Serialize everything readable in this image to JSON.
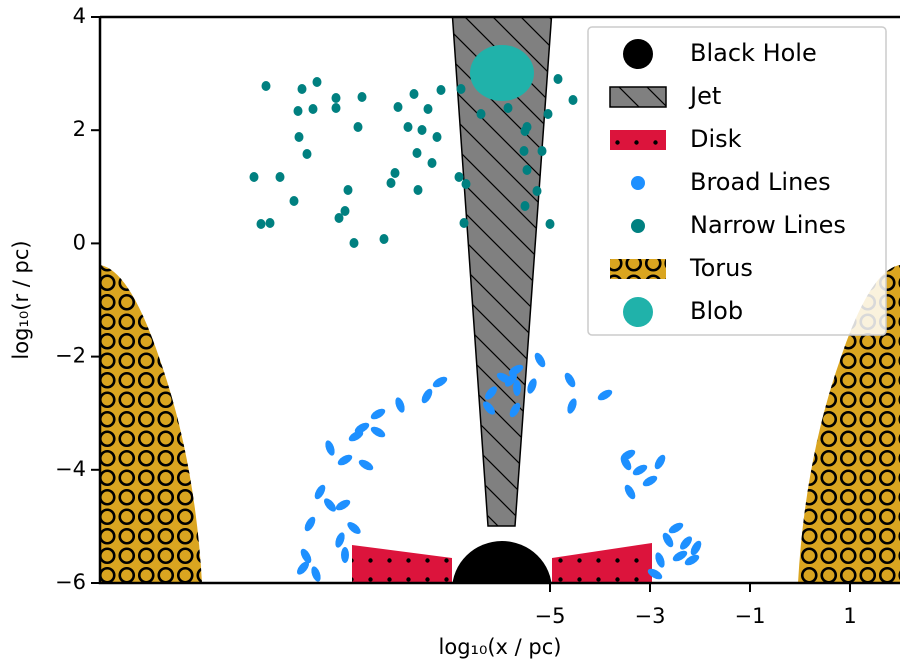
{
  "chart_data": {
    "type": "schematic",
    "xlabel": "log₁₀(x / pc)",
    "ylabel": "log₁₀(r / pc)",
    "xlim": [
      -14,
      2
    ],
    "ylim": [
      -6,
      4
    ],
    "xticks": [
      {
        "value": -5,
        "label": "−5"
      },
      {
        "value": -3,
        "label": "−3"
      },
      {
        "value": -1,
        "label": "−1"
      },
      1
    ],
    "yticks": [
      {
        "value": -6,
        "label": "−6"
      },
      {
        "value": -4,
        "label": "−4"
      },
      {
        "value": -2,
        "label": "−2"
      },
      0,
      2,
      4
    ],
    "legend_position": "upper right",
    "legend": [
      {
        "name": "Black Hole",
        "color": "#000000"
      },
      {
        "name": "Jet",
        "color": "#808080"
      },
      {
        "name": "Disk",
        "color": "#dc143c"
      },
      {
        "name": "Broad Lines",
        "color": "#1e90ff"
      },
      {
        "name": "Narrow Lines",
        "color": "#008080"
      },
      {
        "name": "Torus",
        "color": "#daa520"
      },
      {
        "name": "Blob",
        "color": "#20b2aa"
      }
    ]
  }
}
